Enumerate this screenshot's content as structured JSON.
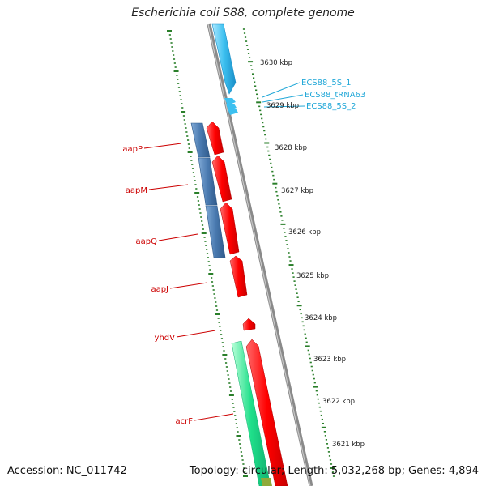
{
  "title": "Escherichia coli S88, complete genome",
  "footer": {
    "accession": "Accession: NC_011742",
    "summary": "Topology: circular; Length: 5,032,268 bp; Genes: 4,894"
  },
  "colors": {
    "backbone": "#8a8a8a",
    "tick": "#2a7f2a",
    "gene_red": "#ff0000",
    "gene_blue": "#4a7ab0",
    "gene_green": "#1fdf8a",
    "rna_cyan": "#3cc0f0",
    "label_red": "#cc0000",
    "label_cyan": "#22a8d8"
  },
  "kbp_labels": [
    "3630 kbp",
    "3629 kbp",
    "3628 kbp",
    "3627 kbp",
    "3626 kbp",
    "3625 kbp",
    "3624 kbp",
    "3623 kbp",
    "3622 kbp",
    "3621 kbp"
  ],
  "gene_labels": [
    "aapP",
    "aapM",
    "aapQ",
    "aapJ",
    "yhdV",
    "acrF"
  ],
  "rna_labels": [
    "ECS88_5S_1",
    "ECS88_tRNA63",
    "ECS88_5S_2"
  ]
}
